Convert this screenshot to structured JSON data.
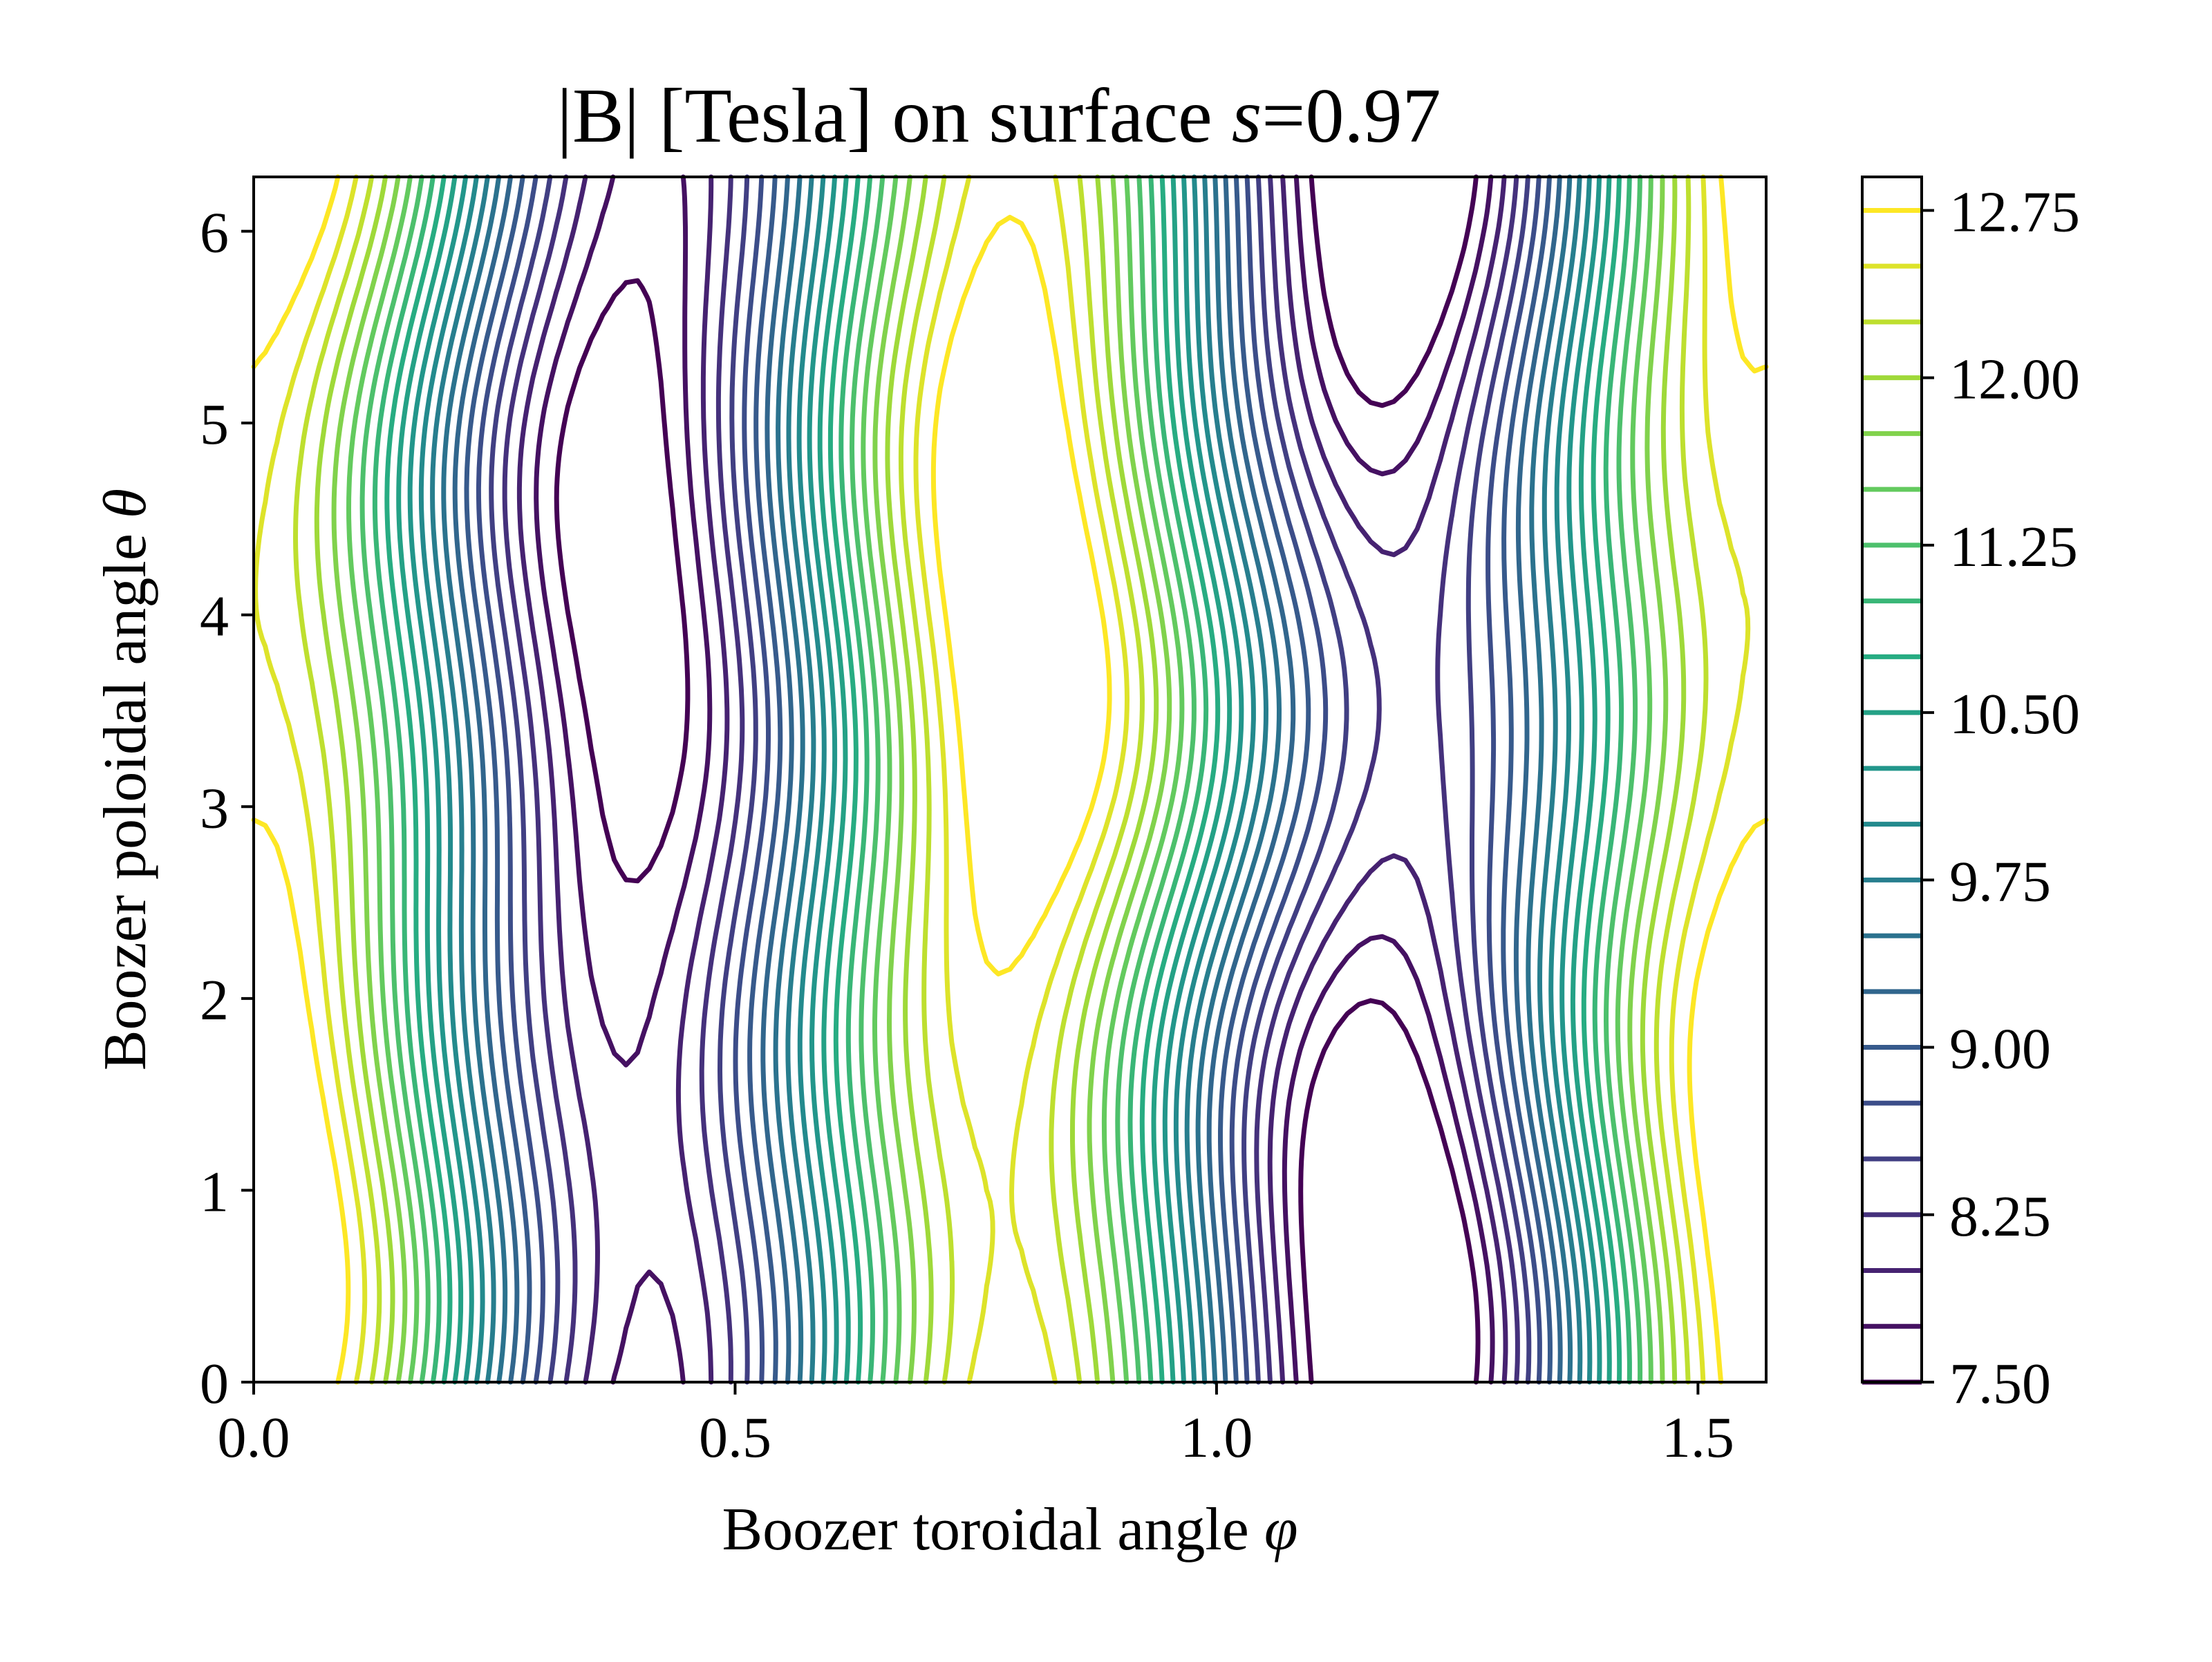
{
  "chart_data": {
    "type": "contour",
    "title_main": "|B| [Tesla] on surface ",
    "title_var": "s",
    "title_value": "=0.97",
    "xlabel_main": "Boozer toroidal angle ",
    "xlabel_var": "φ",
    "ylabel_main": "Boozer poloidal angle ",
    "ylabel_var": "θ",
    "xlim": [
      0,
      1.5708
    ],
    "ylim": [
      0,
      6.2832
    ],
    "x_ticks": [
      0.0,
      0.5,
      1.0,
      1.5
    ],
    "x_tick_labels": [
      "0.0",
      "0.5",
      "1.0",
      "1.5"
    ],
    "y_ticks": [
      0,
      1,
      2,
      3,
      4,
      5,
      6
    ],
    "y_tick_labels": [
      "0",
      "1",
      "2",
      "3",
      "4",
      "5",
      "6"
    ],
    "colorbar": {
      "min": 7.5,
      "max": 12.9,
      "ticks": [
        7.5,
        8.25,
        9.0,
        9.75,
        10.5,
        11.25,
        12.0,
        12.75
      ],
      "tick_labels": [
        "7.50",
        "8.25",
        "9.00",
        "9.75",
        "10.50",
        "11.25",
        "12.00",
        "12.75"
      ]
    },
    "levels": [
      7.5,
      7.75,
      8.0,
      8.25,
      8.5,
      8.75,
      9.0,
      9.25,
      9.5,
      9.75,
      10.0,
      10.25,
      10.5,
      10.75,
      11.0,
      11.25,
      11.5,
      11.75,
      12.0,
      12.25,
      12.5,
      12.75
    ],
    "colormap": "viridis",
    "grid": false
  }
}
